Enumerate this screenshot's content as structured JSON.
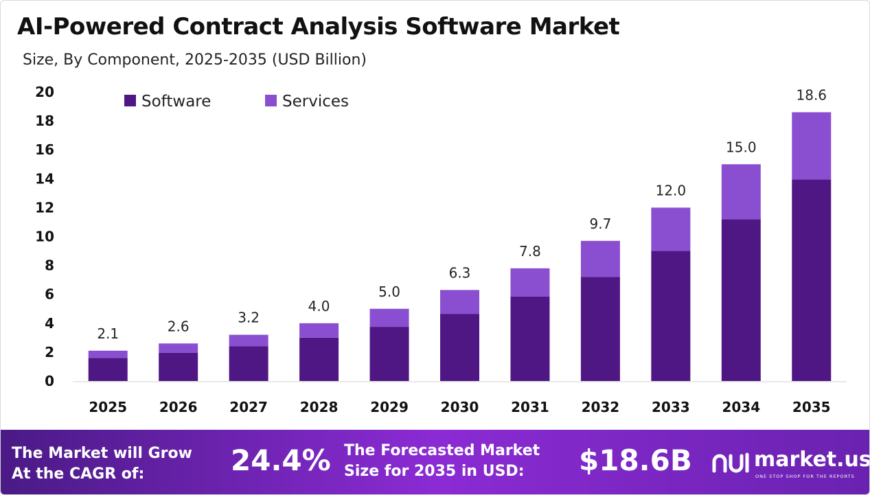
{
  "header": {
    "title": "AI-Powered Contract Analysis Software Market",
    "subtitle": "Size, By Component, 2025-2035 (USD Billion)"
  },
  "chart_data": {
    "type": "bar",
    "stacked": true,
    "categories": [
      "2025",
      "2026",
      "2027",
      "2028",
      "2029",
      "2030",
      "2031",
      "2032",
      "2033",
      "2034",
      "2035"
    ],
    "series": [
      {
        "name": "Software",
        "color": "#4f1784",
        "values": [
          1.6,
          1.95,
          2.4,
          3.0,
          3.75,
          4.65,
          5.85,
          7.2,
          9.0,
          11.2,
          13.95
        ]
      },
      {
        "name": "Services",
        "color": "#8a4fd0",
        "values": [
          0.5,
          0.65,
          0.8,
          1.0,
          1.25,
          1.65,
          1.95,
          2.5,
          3.0,
          3.8,
          4.65
        ]
      }
    ],
    "totals": [
      "2.1",
      "2.6",
      "3.2",
      "4.0",
      "5.0",
      "6.3",
      "7.8",
      "9.7",
      "12.0",
      "15.0",
      "18.6"
    ],
    "y_ticks": [
      0,
      2,
      4,
      6,
      8,
      10,
      12,
      14,
      16,
      18,
      20
    ],
    "ylim": [
      0,
      20
    ],
    "legend_position": "top-left",
    "grid": false
  },
  "banner": {
    "cagr_label_line1": "The Market will Grow",
    "cagr_label_line2": "At the CAGR of:",
    "cagr_value": "24.4%",
    "forecast_label_line1": "The Forecasted Market",
    "forecast_label_line2": "Size for 2035 in USD:",
    "forecast_value": "$18.6B",
    "brand_name": "market.us",
    "brand_tagline": "ONE STOP SHOP FOR THE REPORTS"
  }
}
